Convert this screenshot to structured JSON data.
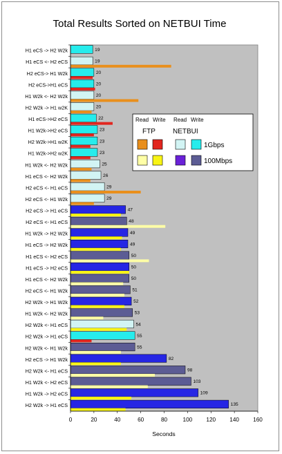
{
  "chart_data": {
    "type": "bar",
    "orientation": "horizontal",
    "title": "Total Results Sorted on NETBUI Time",
    "xlabel": "Seconds",
    "xlim": [
      0,
      160
    ],
    "xticks": [
      0,
      20,
      40,
      60,
      80,
      100,
      120,
      140,
      160
    ],
    "plot_background": "#c0c0c0",
    "legend": {
      "position": "upper-right",
      "header_read": "Read",
      "header_write": "Write",
      "protocol_ftp": "FTP",
      "protocol_netbui": "NETBUI",
      "speed_1g": "1Gbps",
      "speed_100m": "100Mbps"
    },
    "colors": {
      "ftp_read_1g": "#e98f1c",
      "ftp_write_1g": "#e2261f",
      "ftp_read_100m": "#ffffa6",
      "ftp_write_100m": "#f8f414",
      "netbui_read_1g": "#d2f4f4",
      "netbui_write_1g": "#26ecec",
      "netbui_read_100m": "#2626e4",
      "netbui_write_100m": "#5c5c94"
    },
    "rows": [
      {
        "label": "H1 eCS -> H2 W2k",
        "netbui": 19,
        "ftp": null,
        "series": "netbui_write_1g",
        "ftp_series": "ftp_read_1g"
      },
      {
        "label": "H1 eCS <- H2 eCS",
        "netbui": 19,
        "ftp": 86,
        "series": "netbui_read_1g",
        "ftp_series": "ftp_read_1g"
      },
      {
        "label": "H2 eCS-> H1 W2k",
        "netbui": 20,
        "ftp": 19,
        "series": "netbui_write_1g",
        "ftp_series": "ftp_write_1g"
      },
      {
        "label": "H2 eCS->H1 eCS",
        "netbui": 20,
        "ftp": 21,
        "series": "netbui_write_1g",
        "ftp_series": "ftp_write_1g"
      },
      {
        "label": "H1 W2k <- H2 W2k",
        "netbui": 20,
        "ftp": 58,
        "series": "netbui_read_1g",
        "ftp_series": "ftp_read_1g"
      },
      {
        "label": "H2 W2k -> H1 w2K",
        "netbui": 20,
        "ftp": 18,
        "series": "netbui_read_1g",
        "ftp_series": "ftp_read_1g"
      },
      {
        "label": "H1 eCS->H2 eCS",
        "netbui": 22,
        "ftp": 36,
        "series": "netbui_write_1g",
        "ftp_series": "ftp_write_1g"
      },
      {
        "label": "H1 W2k->H2 eCS",
        "netbui": 23,
        "ftp": 20,
        "series": "netbui_write_1g",
        "ftp_series": "ftp_write_1g"
      },
      {
        "label": "H2 W2k->H1 w2K",
        "netbui": 23,
        "ftp": 17,
        "series": "netbui_write_1g",
        "ftp_series": "ftp_write_1g"
      },
      {
        "label": "H1 W2k->H2 w2K",
        "netbui": 23,
        "ftp": 17,
        "series": "netbui_write_1g",
        "ftp_series": "ftp_write_1g"
      },
      {
        "label": "H1 W2k <- H2 W2k",
        "netbui": 25,
        "ftp": 18,
        "series": "netbui_read_1g",
        "ftp_series": "ftp_read_1g"
      },
      {
        "label": "H1 eCS <- H2 W2k",
        "netbui": 26,
        "ftp": 17,
        "series": "netbui_read_1g",
        "ftp_series": "ftp_read_1g"
      },
      {
        "label": "H2 eCS <- H1 eCS",
        "netbui": 29,
        "ftp": 60,
        "series": "netbui_read_1g",
        "ftp_series": "ftp_read_1g"
      },
      {
        "label": "H2 eCS <- H1 W2k",
        "netbui": 29,
        "ftp": 20,
        "series": "netbui_read_1g",
        "ftp_series": "ftp_read_1g"
      },
      {
        "label": "H2 eCS -> H1 eCS",
        "netbui": 47,
        "ftp": 43,
        "series": "netbui_read_100m",
        "ftp_series": "ftp_write_100m"
      },
      {
        "label": "H2 eCS <- H1 eCS",
        "netbui": 48,
        "ftp": 81,
        "series": "netbui_write_100m",
        "ftp_series": "ftp_read_100m"
      },
      {
        "label": "H1 W2k -> H2 W2k",
        "netbui": 49,
        "ftp": 44,
        "series": "netbui_read_100m",
        "ftp_series": "ftp_write_100m"
      },
      {
        "label": "H1 eCS -> H2 W2k",
        "netbui": 49,
        "ftp": 43,
        "series": "netbui_read_100m",
        "ftp_series": "ftp_write_100m"
      },
      {
        "label": "H1 eCS <- H2 eCS",
        "netbui": 50,
        "ftp": 67,
        "series": "netbui_write_100m",
        "ftp_series": "ftp_read_100m"
      },
      {
        "label": "H1 eCS -> H2 eCS",
        "netbui": 50,
        "ftp": 50,
        "series": "netbui_read_100m",
        "ftp_series": "ftp_write_100m"
      },
      {
        "label": "H1 eCS <- H2 W2k",
        "netbui": 50,
        "ftp": 45,
        "series": "netbui_write_100m",
        "ftp_series": "ftp_read_100m"
      },
      {
        "label": "H2 eCS <- H1 W2k",
        "netbui": 51,
        "ftp": 46,
        "series": "netbui_write_100m",
        "ftp_series": "ftp_read_100m"
      },
      {
        "label": "H2 W2k -> H1 W2k",
        "netbui": 52,
        "ftp": 46,
        "series": "netbui_read_100m",
        "ftp_series": "ftp_write_100m"
      },
      {
        "label": "H1 W2k <- H2 W2k",
        "netbui": 53,
        "ftp": 28,
        "series": "netbui_write_100m",
        "ftp_series": "ftp_read_100m"
      },
      {
        "label": "H2 W2k <- H1 eCS",
        "netbui": 54,
        "ftp": 48,
        "series": "netbui_read_1g",
        "ftp_series": "ftp_write_100m"
      },
      {
        "label": "H2 W2k -> H1 eCS",
        "netbui": 55,
        "ftp": 18,
        "series": "netbui_write_1g",
        "ftp_series": "ftp_write_1g"
      },
      {
        "label": "H2 W2k <- H1 W2k",
        "netbui": 55,
        "ftp": 43,
        "series": "netbui_write_100m",
        "ftp_series": "ftp_read_100m"
      },
      {
        "label": "H2 eCS -> H1 W2k",
        "netbui": 82,
        "ftp": 43,
        "series": "netbui_read_100m",
        "ftp_series": "ftp_write_100m"
      },
      {
        "label": "H2 W2k <- H1 eCS",
        "netbui": 98,
        "ftp": 72,
        "series": "netbui_write_100m",
        "ftp_series": "ftp_read_100m"
      },
      {
        "label": "H1 W2k <- H2 eCS",
        "netbui": 103,
        "ftp": 66,
        "series": "netbui_write_100m",
        "ftp_series": "ftp_read_100m"
      },
      {
        "label": "H1 W2k -> H2 eCS",
        "netbui": 109,
        "ftp": 52,
        "series": "netbui_read_100m",
        "ftp_series": "ftp_write_100m"
      },
      {
        "label": "H2 W2k -> H1 eCS",
        "netbui": 135,
        "ftp": 47,
        "series": "netbui_read_100m",
        "ftp_series": "ftp_write_100m"
      }
    ]
  }
}
